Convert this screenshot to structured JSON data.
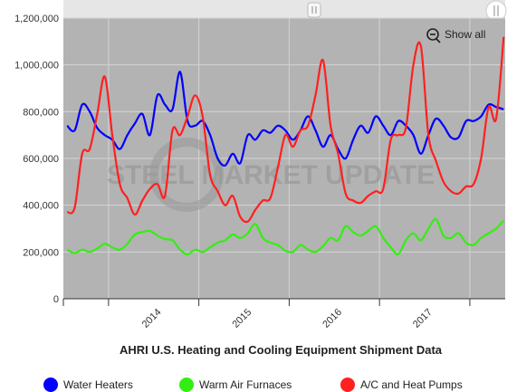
{
  "chart_data": {
    "type": "line",
    "title": "AHRI U.S. Heating and Cooling Equipment Shipment Data",
    "xlabel": "",
    "ylabel": "",
    "ylim": [
      0,
      1200000
    ],
    "yticks": [
      "0",
      "200,000",
      "400,000",
      "600,000",
      "800,000",
      "1,000,000",
      "1,200,000"
    ],
    "xticks": [
      "2014",
      "2015",
      "2016",
      "2017"
    ],
    "grid": true,
    "legend_position": "bottom",
    "x": [
      "2013-07",
      "2013-08",
      "2013-09",
      "2013-10",
      "2013-11",
      "2013-12",
      "2014-01",
      "2014-02",
      "2014-03",
      "2014-04",
      "2014-05",
      "2014-06",
      "2014-07",
      "2014-08",
      "2014-09",
      "2014-10",
      "2014-11",
      "2014-12",
      "2015-01",
      "2015-02",
      "2015-03",
      "2015-04",
      "2015-05",
      "2015-06",
      "2015-07",
      "2015-08",
      "2015-09",
      "2015-10",
      "2015-11",
      "2015-12",
      "2016-01",
      "2016-02",
      "2016-03",
      "2016-04",
      "2016-05",
      "2016-06",
      "2016-07",
      "2016-08",
      "2016-09",
      "2016-10",
      "2016-11",
      "2016-12",
      "2017-01",
      "2017-02",
      "2017-03",
      "2017-04",
      "2017-05",
      "2017-06",
      "2017-07",
      "2017-08",
      "2017-09",
      "2017-10",
      "2017-11",
      "2017-12",
      "2018-01",
      "2018-02",
      "2018-03",
      "2018-04",
      "2018-05"
    ],
    "series": [
      {
        "name": "Water Heaters",
        "color": "#0000ff",
        "values": [
          740,
          720,
          830,
          800,
          730,
          700,
          680,
          640,
          700,
          750,
          790,
          700,
          870,
          830,
          810,
          970,
          760,
          740,
          760,
          700,
          600,
          570,
          620,
          580,
          700,
          680,
          720,
          710,
          740,
          720,
          680,
          720,
          780,
          720,
          650,
          700,
          640,
          600,
          680,
          740,
          710,
          780,
          740,
          700,
          760,
          740,
          700,
          620,
          700,
          770,
          740,
          690,
          690,
          760,
          760,
          780,
          830,
          820,
          810
        ]
      },
      {
        "name": "Warm Air Furnaces",
        "color": "#33ee11",
        "values": [
          210,
          195,
          210,
          200,
          215,
          235,
          220,
          210,
          235,
          275,
          285,
          290,
          270,
          255,
          250,
          210,
          190,
          210,
          200,
          220,
          240,
          250,
          275,
          260,
          280,
          320,
          260,
          240,
          230,
          205,
          200,
          230,
          210,
          200,
          225,
          260,
          250,
          310,
          285,
          270,
          290,
          310,
          260,
          220,
          190,
          250,
          280,
          250,
          300,
          340,
          270,
          260,
          280,
          240,
          230,
          260,
          280,
          300,
          335
        ]
      },
      {
        "name": "A/C and Heat Pumps",
        "color": "#ff2020",
        "values": [
          370,
          390,
          620,
          640,
          790,
          950,
          700,
          490,
          430,
          360,
          420,
          470,
          490,
          440,
          720,
          700,
          780,
          870,
          780,
          530,
          460,
          400,
          440,
          350,
          330,
          380,
          420,
          430,
          560,
          700,
          650,
          720,
          740,
          870,
          1020,
          740,
          620,
          450,
          420,
          410,
          440,
          460,
          470,
          680,
          700,
          730,
          1000,
          1080,
          700,
          590,
          500,
          460,
          450,
          480,
          490,
          600,
          820,
          770,
          1120
        ]
      }
    ]
  },
  "toolbar": {
    "show_all": "Show all"
  },
  "watermark": "STEEL MARKET UPDATE",
  "colors": {
    "plot_bg": "#b3b3b3",
    "navigator_bg": "#e6e6e6"
  }
}
